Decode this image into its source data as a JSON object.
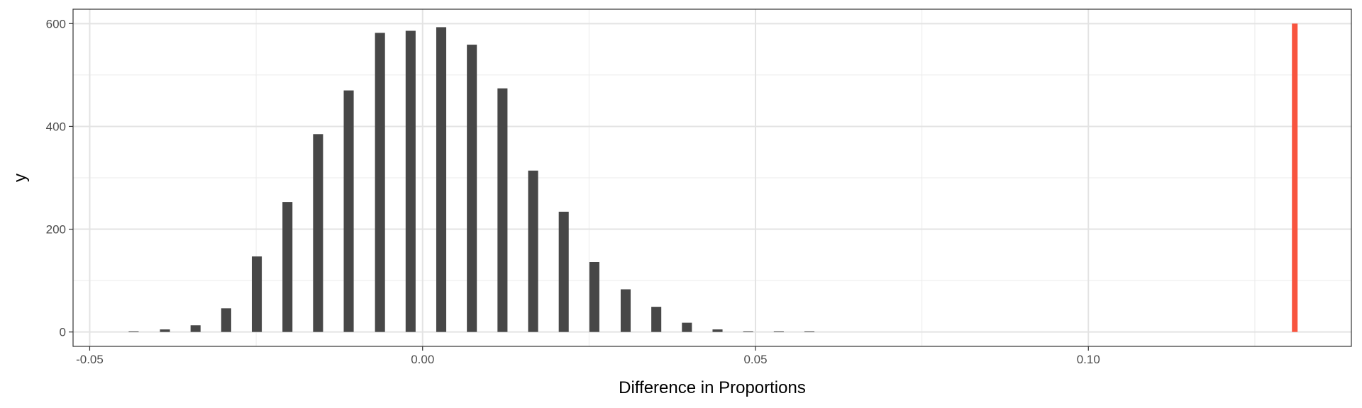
{
  "chart_data": {
    "type": "bar",
    "title": "",
    "xlabel": "Difference in Proportions",
    "ylabel": "y",
    "xlim": [
      -0.0525,
      0.1395
    ],
    "ylim": [
      -28,
      628
    ],
    "grid": true,
    "x_ticks": [
      {
        "value": -0.05,
        "label": "-0.05"
      },
      {
        "value": 0.0,
        "label": "0.00"
      },
      {
        "value": 0.05,
        "label": "0.05"
      },
      {
        "value": 0.1,
        "label": "0.10"
      }
    ],
    "y_ticks": [
      {
        "value": 0,
        "label": "0"
      },
      {
        "value": 200,
        "label": "200"
      },
      {
        "value": 400,
        "label": "400"
      },
      {
        "value": 600,
        "label": "600"
      }
    ],
    "bar_width": 0.0015,
    "series": [
      {
        "x": [
          -0.0434,
          -0.0387,
          -0.0341,
          -0.0295,
          -0.0249,
          -0.0203,
          -0.0157,
          -0.0111,
          -0.0064,
          -0.0018,
          0.0028,
          0.0074,
          0.012,
          0.0166,
          0.0212,
          0.0258,
          0.0305,
          0.0351,
          0.0397,
          0.0443,
          0.0489,
          0.0535,
          0.0581
        ],
        "values": [
          1,
          5,
          13,
          46,
          147,
          253,
          385,
          470,
          582,
          586,
          593,
          559,
          474,
          314,
          234,
          136,
          83,
          49,
          18,
          5,
          1,
          1,
          1
        ],
        "color": "#474747"
      }
    ],
    "reference_line": {
      "x": 0.131,
      "y_end": 600,
      "color": "#F8543F"
    }
  }
}
